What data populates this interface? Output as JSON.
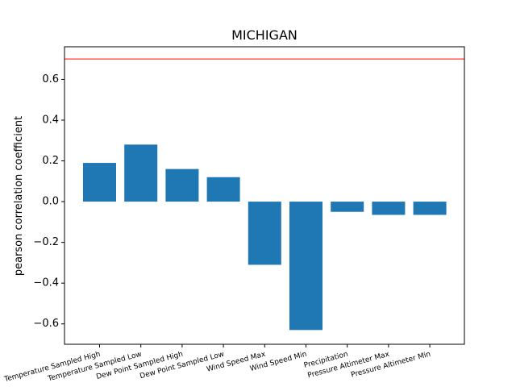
{
  "chart_data": {
    "type": "bar",
    "title": "MICHIGAN",
    "xlabel": "",
    "ylabel": "pearson correlation coefficient",
    "categories": [
      "Temperature Sampled High",
      "Temperature Sampled Low",
      "Dew Point Sampled High",
      "Dew Point Sampled Low",
      "Wind Speed Max",
      "Wind Speed Min",
      "Precipitation",
      "Pressure Altimeter Max",
      "Pressure Altimeter Min"
    ],
    "values": [
      0.19,
      0.28,
      0.16,
      0.12,
      -0.31,
      -0.63,
      -0.05,
      -0.065,
      -0.065
    ],
    "ylim": [
      -0.7,
      0.76
    ],
    "yticks": [
      -0.6,
      -0.4,
      -0.2,
      0.0,
      0.2,
      0.4,
      0.6
    ],
    "ytick_labels": [
      "−0.6",
      "−0.4",
      "−0.2",
      "0.0",
      "0.2",
      "0.4",
      "0.6"
    ],
    "reference_line": 0.7,
    "bar_color": "#1f77b4",
    "reference_line_color": "#ff0000",
    "grid": false,
    "legend": "none"
  }
}
